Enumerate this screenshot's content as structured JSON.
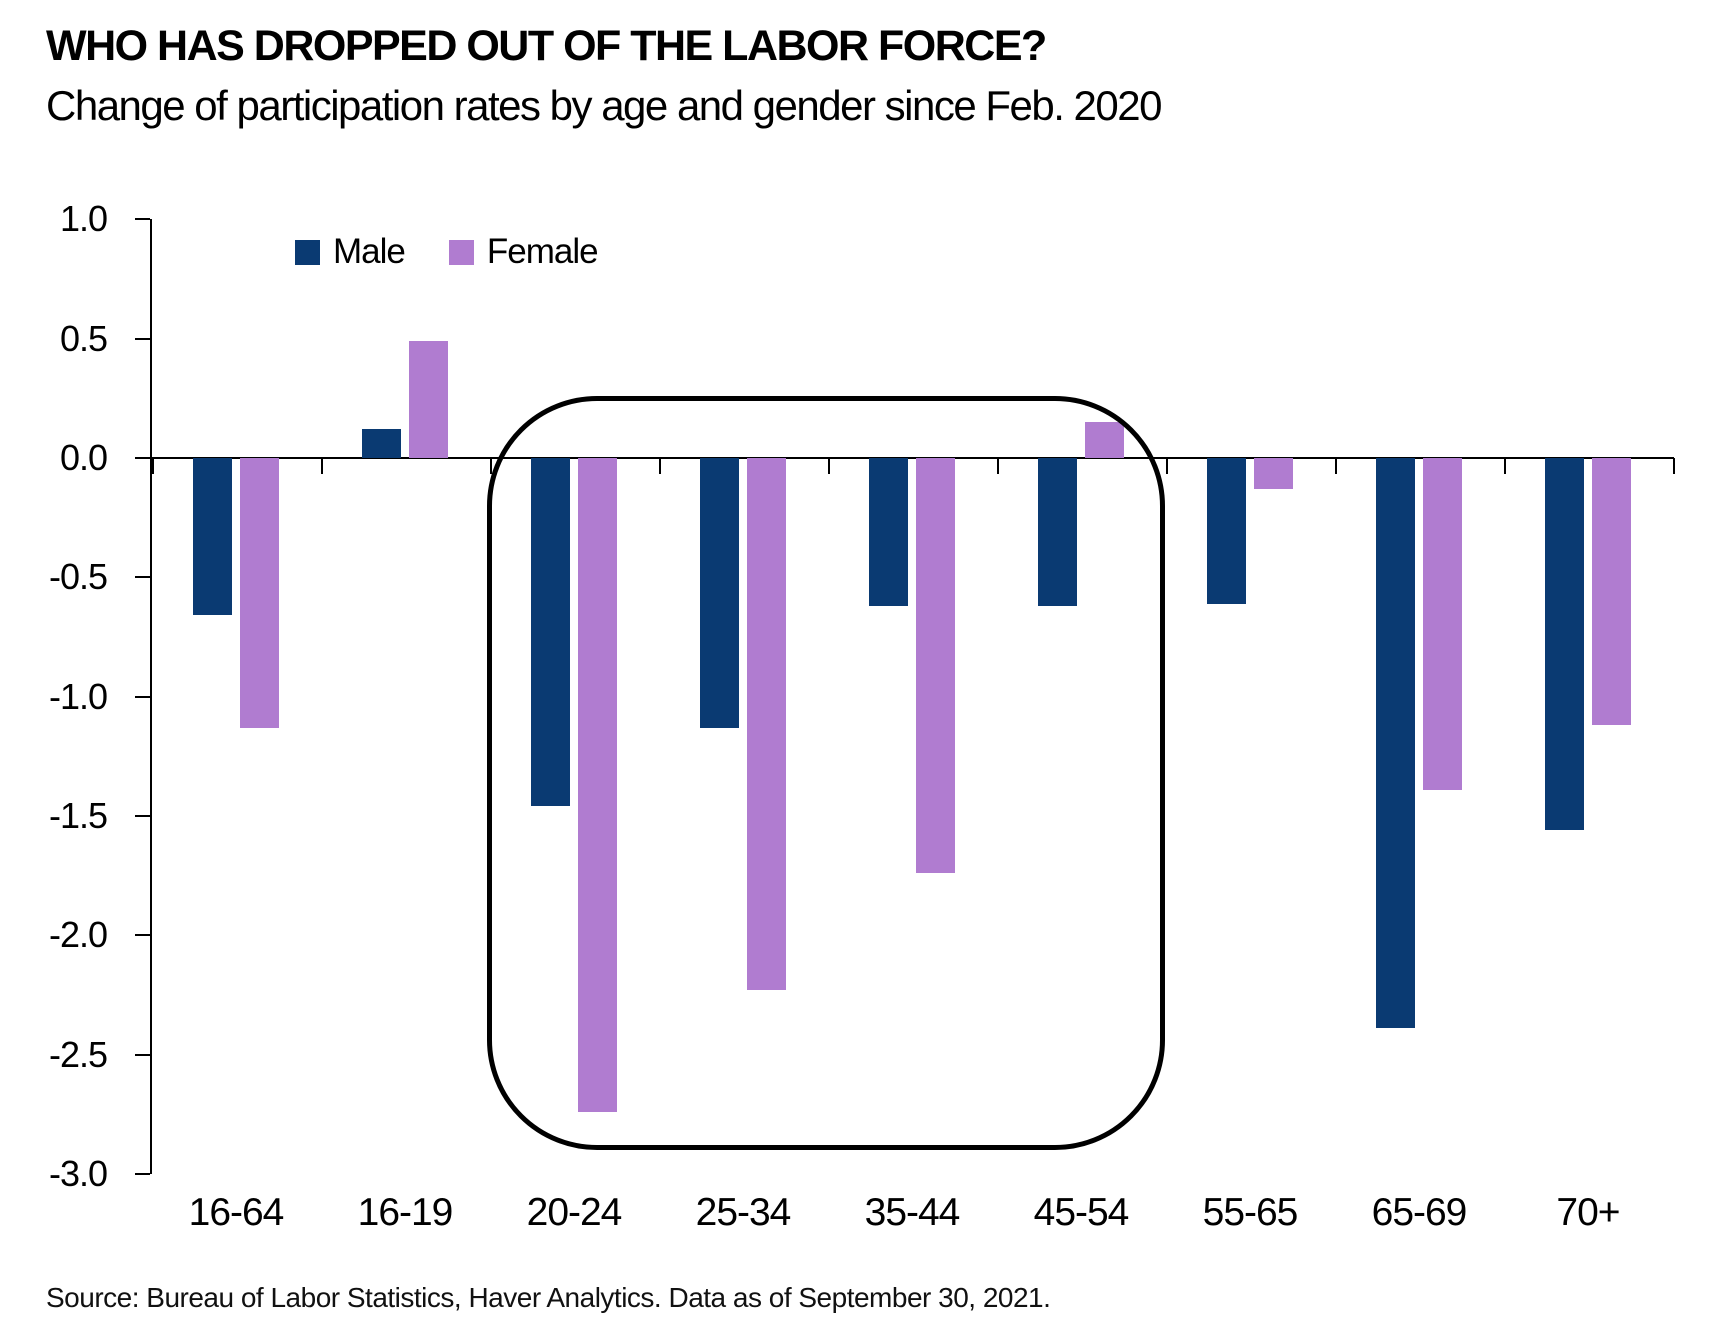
{
  "title": "WHO HAS DROPPED OUT OF THE LABOR FORCE?",
  "subtitle": "Change of participation rates by age and gender since Feb. 2020",
  "source": "Source: Bureau of Labor Statistics, Haver Analytics. Data as of September 30, 2021.",
  "colors": {
    "male": "#0A3A72",
    "female": "#B07CD0",
    "axis": "#000000",
    "background": "#FFFFFF"
  },
  "chart_data": {
    "type": "bar",
    "title": "WHO HAS DROPPED OUT OF THE LABOR FORCE?",
    "subtitle": "Change of participation rates by age and gender since Feb. 2020",
    "categories": [
      "16-64",
      "16-19",
      "20-24",
      "25-34",
      "35-44",
      "45-54",
      "55-65",
      "65-69",
      "70+"
    ],
    "series": [
      {
        "name": "Male",
        "color": "#0A3A72",
        "values": [
          -0.66,
          0.12,
          -1.46,
          -1.13,
          -0.62,
          -0.62,
          -0.61,
          -2.39,
          -1.56
        ]
      },
      {
        "name": "Female",
        "color": "#B07CD0",
        "values": [
          -1.13,
          0.49,
          -2.74,
          -2.23,
          -1.74,
          0.15,
          -0.13,
          -1.39,
          -1.12
        ]
      }
    ],
    "xlabel": "",
    "ylabel": "",
    "ylim": [
      -3.0,
      1.0
    ],
    "ytick_step": 0.5,
    "yticks": [
      "1.0",
      "0.5",
      "0.0",
      "-0.5",
      "-1.0",
      "-1.5",
      "-2.0",
      "-2.5",
      "-3.0"
    ],
    "grid": false,
    "legend_position": "top-left-inside",
    "annotation_box": {
      "categories": [
        "20-24",
        "25-34",
        "35-44",
        "45-54"
      ],
      "y_top": 0.26,
      "y_bottom": -2.9
    }
  }
}
